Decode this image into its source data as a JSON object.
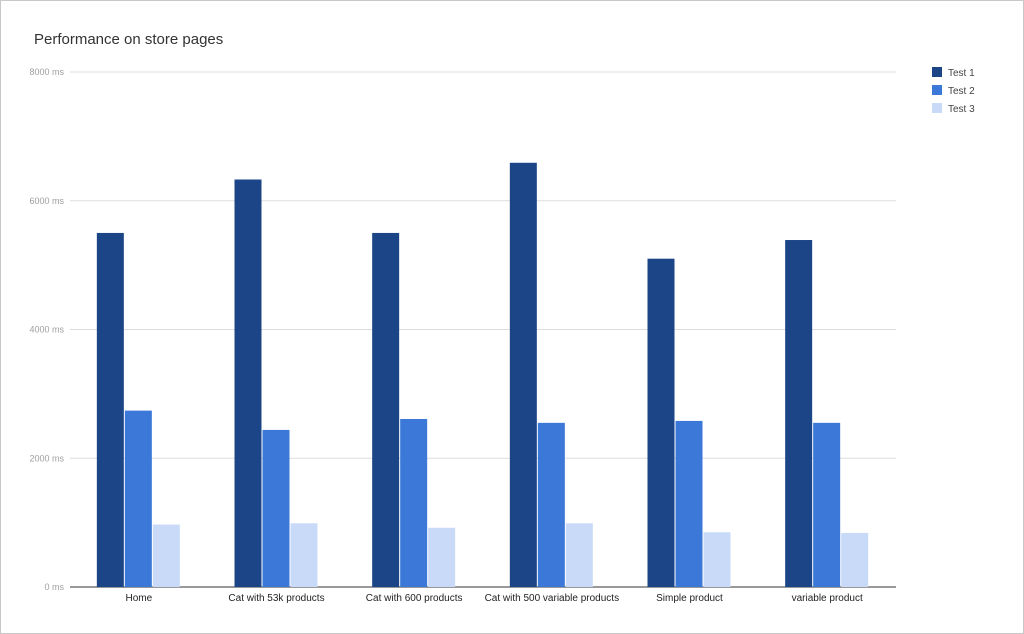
{
  "chart_data": {
    "type": "bar",
    "title": "Performance on store pages",
    "xlabel": "",
    "ylabel": "",
    "categories": [
      "Home",
      "Cat with 53k products",
      "Cat with 600 products",
      "Cat with 500 variable products",
      "Simple product",
      "variable product"
    ],
    "series": [
      {
        "name": "Test 1",
        "values": [
          5500,
          6330,
          5500,
          6590,
          5100,
          5390
        ],
        "color": "#1c4587"
      },
      {
        "name": "Test 2",
        "values": [
          2740,
          2440,
          2610,
          2550,
          2580,
          2550
        ],
        "color": "#3c78d8"
      },
      {
        "name": "Test 3",
        "values": [
          970,
          990,
          920,
          990,
          850,
          840
        ],
        "color": "#c9daf8"
      }
    ],
    "ylim": [
      0,
      8000
    ],
    "yticks": [
      0,
      2000,
      4000,
      6000,
      8000
    ],
    "ytick_labels": [
      "0 ms",
      "2000 ms",
      "4000 ms",
      "6000 ms",
      "8000 ms"
    ],
    "grid": true,
    "legend_position": "right"
  }
}
